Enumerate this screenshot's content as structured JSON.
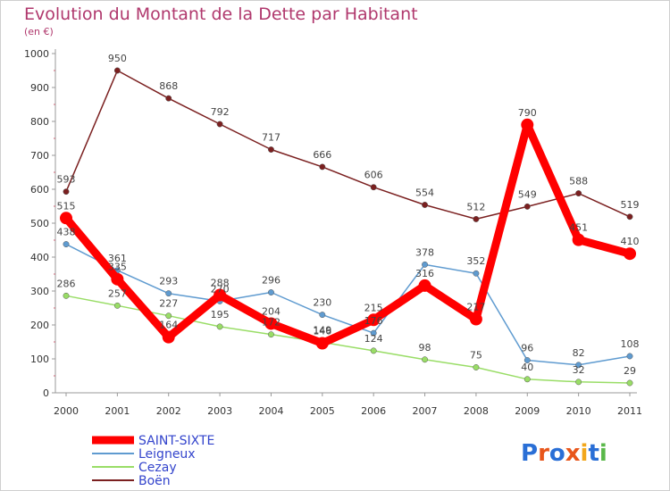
{
  "chart_data": {
    "type": "line",
    "title": "Evolution du Montant de la Dette par Habitant",
    "subtitle": "(en €)",
    "xlabel": "",
    "ylabel": "",
    "ylim": [
      0,
      1000
    ],
    "yticks": [
      0,
      100,
      200,
      300,
      400,
      500,
      600,
      700,
      800,
      900,
      1000
    ],
    "grid": false,
    "legend_position": "bottom-left",
    "categories": [
      "2000",
      "2001",
      "2002",
      "2003",
      "2004",
      "2005",
      "2006",
      "2007",
      "2008",
      "2009",
      "2010",
      "2011"
    ],
    "series": [
      {
        "name": "Boën",
        "color": "#7b2020",
        "values": [
          593,
          950,
          868,
          792,
          717,
          666,
          606,
          554,
          512,
          549,
          588,
          519
        ]
      },
      {
        "name": "Cezay",
        "color": "#99dd66",
        "values": [
          286,
          257,
          227,
          195,
          172,
          149,
          124,
          98,
          75,
          40,
          32,
          29
        ]
      },
      {
        "name": "Leigneux",
        "color": "#5f9bd0",
        "values": [
          438,
          361,
          293,
          270,
          296,
          230,
          176,
          378,
          352,
          96,
          82,
          108
        ]
      },
      {
        "name": "SAINT-SIXTE",
        "color": "#ff0000",
        "values": [
          515,
          335,
          164,
          288,
          204,
          146,
          215,
          316,
          217,
          790,
          451,
          410
        ]
      }
    ],
    "legend_order": [
      "SAINT-SIXTE",
      "Leigneux",
      "Cezay",
      "Boën"
    ]
  },
  "logo": {
    "text": "Proxiti"
  }
}
